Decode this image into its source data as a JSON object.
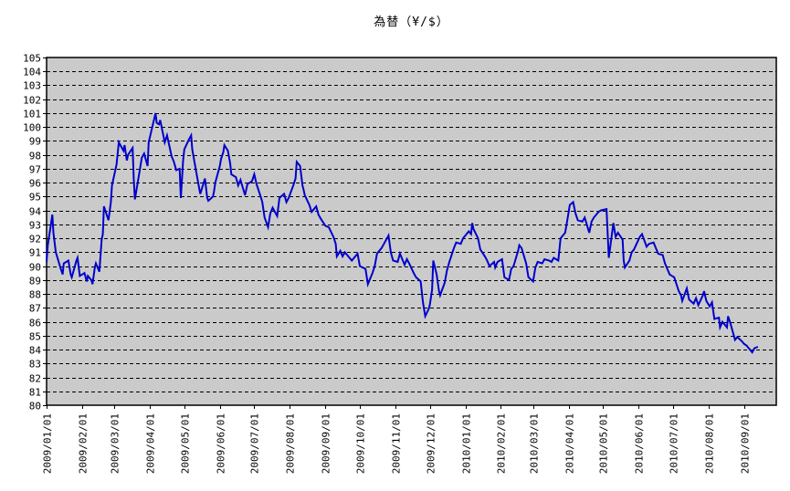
{
  "page": {
    "background": "#ffffff"
  },
  "chart_data": {
    "type": "line",
    "title": "為替（¥/$）",
    "xlabel": "",
    "ylabel": "",
    "legend": "none",
    "grid": "horizontal-dashed-black",
    "ylim": [
      80,
      105
    ],
    "y_tick_step": 1,
    "y_ticks": [
      80,
      81,
      82,
      83,
      84,
      85,
      86,
      87,
      88,
      89,
      90,
      91,
      92,
      93,
      94,
      95,
      96,
      97,
      98,
      99,
      100,
      101,
      102,
      103,
      104,
      105
    ],
    "x_ticks": [
      "2009/01/01",
      "2009/02/01",
      "2009/03/01",
      "2009/04/01",
      "2009/05/01",
      "2009/06/01",
      "2009/07/01",
      "2009/08/01",
      "2009/09/01",
      "2009/10/01",
      "2009/11/01",
      "2009/12/01",
      "2010/01/01",
      "2010/02/01",
      "2010/03/01",
      "2010/04/01",
      "2010/05/01",
      "2010/06/01",
      "2010/07/01",
      "2010/08/01",
      "2010/09/01"
    ],
    "x_axis_start": "2009-01-01",
    "x_axis_end": "2010-09-29",
    "colors": {
      "line": "#0000cc",
      "plot_background": "#c6c6c6",
      "plot_background_alt": "#cfcfcf",
      "grid": "#000000",
      "border": "#000000",
      "text": "#000000"
    },
    "series": [
      {
        "name": "為替（¥/$）",
        "points": [
          [
            "2009-01-01",
            90.3
          ],
          [
            "2009-01-02",
            91.5
          ],
          [
            "2009-01-05",
            93.1
          ],
          [
            "2009-01-06",
            93.7
          ],
          [
            "2009-01-07",
            92.4
          ],
          [
            "2009-01-09",
            91.0
          ],
          [
            "2009-01-13",
            89.9
          ],
          [
            "2009-01-15",
            89.4
          ],
          [
            "2009-01-16",
            90.2
          ],
          [
            "2009-01-20",
            90.4
          ],
          [
            "2009-01-22",
            89.4
          ],
          [
            "2009-01-23",
            89.2
          ],
          [
            "2009-01-27",
            90.4
          ],
          [
            "2009-01-28",
            90.6
          ],
          [
            "2009-01-30",
            89.3
          ],
          [
            "2009-02-03",
            89.5
          ],
          [
            "2009-02-05",
            88.9
          ],
          [
            "2009-02-06",
            89.3
          ],
          [
            "2009-02-09",
            89.0
          ],
          [
            "2009-02-10",
            88.7
          ],
          [
            "2009-02-12",
            89.9
          ],
          [
            "2009-02-13",
            90.2
          ],
          [
            "2009-02-16",
            89.6
          ],
          [
            "2009-02-18",
            91.9
          ],
          [
            "2009-02-19",
            92.3
          ],
          [
            "2009-02-20",
            94.3
          ],
          [
            "2009-02-24",
            93.3
          ],
          [
            "2009-02-26",
            94.6
          ],
          [
            "2009-02-27",
            95.8
          ],
          [
            "2009-03-03",
            97.3
          ],
          [
            "2009-03-05",
            98.9
          ],
          [
            "2009-03-09",
            98.3
          ],
          [
            "2009-03-10",
            98.7
          ],
          [
            "2009-03-12",
            97.6
          ],
          [
            "2009-03-13",
            98.0
          ],
          [
            "2009-03-17",
            98.5
          ],
          [
            "2009-03-18",
            96.2
          ],
          [
            "2009-03-19",
            94.8
          ],
          [
            "2009-03-23",
            96.8
          ],
          [
            "2009-03-25",
            97.8
          ],
          [
            "2009-03-27",
            98.1
          ],
          [
            "2009-03-30",
            97.2
          ],
          [
            "2009-03-31",
            98.9
          ],
          [
            "2009-04-02",
            99.6
          ],
          [
            "2009-04-06",
            101.0
          ],
          [
            "2009-04-07",
            100.3
          ],
          [
            "2009-04-09",
            100.2
          ],
          [
            "2009-04-10",
            100.5
          ],
          [
            "2009-04-14",
            98.9
          ],
          [
            "2009-04-16",
            99.4
          ],
          [
            "2009-04-20",
            97.9
          ],
          [
            "2009-04-22",
            97.5
          ],
          [
            "2009-04-24",
            96.9
          ],
          [
            "2009-04-27",
            97.0
          ],
          [
            "2009-04-28",
            94.9
          ],
          [
            "2009-04-30",
            97.6
          ],
          [
            "2009-05-01",
            98.4
          ],
          [
            "2009-05-05",
            99.1
          ],
          [
            "2009-05-07",
            99.4
          ],
          [
            "2009-05-08",
            98.4
          ],
          [
            "2009-05-12",
            96.5
          ],
          [
            "2009-05-14",
            95.6
          ],
          [
            "2009-05-15",
            95.2
          ],
          [
            "2009-05-19",
            96.3
          ],
          [
            "2009-05-21",
            94.9
          ],
          [
            "2009-05-22",
            94.7
          ],
          [
            "2009-05-26",
            95.0
          ],
          [
            "2009-05-27",
            95.4
          ],
          [
            "2009-05-28",
            96.0
          ],
          [
            "2009-06-01",
            97.2
          ],
          [
            "2009-06-02",
            97.7
          ],
          [
            "2009-06-04",
            98.2
          ],
          [
            "2009-06-05",
            98.7
          ],
          [
            "2009-06-08",
            98.3
          ],
          [
            "2009-06-10",
            97.4
          ],
          [
            "2009-06-11",
            96.6
          ],
          [
            "2009-06-15",
            96.4
          ],
          [
            "2009-06-17",
            95.8
          ],
          [
            "2009-06-19",
            96.2
          ],
          [
            "2009-06-23",
            95.1
          ],
          [
            "2009-06-25",
            95.9
          ],
          [
            "2009-06-29",
            96.1
          ],
          [
            "2009-07-01",
            96.6
          ],
          [
            "2009-07-03",
            95.9
          ],
          [
            "2009-07-07",
            94.9
          ],
          [
            "2009-07-08",
            94.6
          ],
          [
            "2009-07-10",
            93.5
          ],
          [
            "2009-07-13",
            92.8
          ],
          [
            "2009-07-15",
            93.8
          ],
          [
            "2009-07-17",
            94.2
          ],
          [
            "2009-07-21",
            93.6
          ],
          [
            "2009-07-23",
            94.9
          ],
          [
            "2009-07-27",
            95.2
          ],
          [
            "2009-07-29",
            94.6
          ],
          [
            "2009-07-31",
            94.9
          ],
          [
            "2009-08-04",
            95.8
          ],
          [
            "2009-08-06",
            96.3
          ],
          [
            "2009-08-07",
            97.5
          ],
          [
            "2009-08-10",
            97.2
          ],
          [
            "2009-08-12",
            95.8
          ],
          [
            "2009-08-13",
            95.5
          ],
          [
            "2009-08-14",
            95.1
          ],
          [
            "2009-08-18",
            94.4
          ],
          [
            "2009-08-20",
            93.9
          ],
          [
            "2009-08-24",
            94.3
          ],
          [
            "2009-08-26",
            93.7
          ],
          [
            "2009-08-28",
            93.4
          ],
          [
            "2009-09-01",
            92.9
          ],
          [
            "2009-09-04",
            92.8
          ],
          [
            "2009-09-08",
            92.1
          ],
          [
            "2009-09-10",
            91.6
          ],
          [
            "2009-09-11",
            90.7
          ],
          [
            "2009-09-14",
            91.1
          ],
          [
            "2009-09-16",
            90.7
          ],
          [
            "2009-09-18",
            91.0
          ],
          [
            "2009-09-24",
            90.4
          ],
          [
            "2009-09-29",
            90.9
          ],
          [
            "2009-10-01",
            90.0
          ],
          [
            "2009-10-06",
            89.8
          ],
          [
            "2009-10-08",
            88.7
          ],
          [
            "2009-10-12",
            89.5
          ],
          [
            "2009-10-14",
            90.0
          ],
          [
            "2009-10-16",
            90.9
          ],
          [
            "2009-10-20",
            91.3
          ],
          [
            "2009-10-26",
            92.2
          ],
          [
            "2009-10-28",
            91.0
          ],
          [
            "2009-10-30",
            90.4
          ],
          [
            "2009-11-03",
            90.3
          ],
          [
            "2009-11-05",
            90.9
          ],
          [
            "2009-11-09",
            90.1
          ],
          [
            "2009-11-11",
            90.5
          ],
          [
            "2009-11-13",
            90.2
          ],
          [
            "2009-11-17",
            89.5
          ],
          [
            "2009-11-19",
            89.2
          ],
          [
            "2009-11-23",
            88.9
          ],
          [
            "2009-11-25",
            87.4
          ],
          [
            "2009-11-27",
            86.4
          ],
          [
            "2009-11-30",
            86.9
          ],
          [
            "2009-12-01",
            87.2
          ],
          [
            "2009-12-03",
            88.3
          ],
          [
            "2009-12-04",
            90.4
          ],
          [
            "2009-12-07",
            89.4
          ],
          [
            "2009-12-09",
            88.2
          ],
          [
            "2009-12-10",
            87.9
          ],
          [
            "2009-12-14",
            88.8
          ],
          [
            "2009-12-16",
            89.7
          ],
          [
            "2009-12-18",
            90.3
          ],
          [
            "2009-12-22",
            91.3
          ],
          [
            "2009-12-24",
            91.7
          ],
          [
            "2009-12-28",
            91.6
          ],
          [
            "2009-12-30",
            92.0
          ],
          [
            "2010-01-04",
            92.5
          ],
          [
            "2010-01-06",
            92.3
          ],
          [
            "2010-01-07",
            93.1
          ],
          [
            "2010-01-08",
            92.7
          ],
          [
            "2010-01-12",
            92.0
          ],
          [
            "2010-01-14",
            91.2
          ],
          [
            "2010-01-18",
            90.7
          ],
          [
            "2010-01-20",
            90.4
          ],
          [
            "2010-01-22",
            90.0
          ],
          [
            "2010-01-26",
            90.3
          ],
          [
            "2010-01-27",
            89.9
          ],
          [
            "2010-01-29",
            90.3
          ],
          [
            "2010-02-02",
            90.5
          ],
          [
            "2010-02-04",
            89.2
          ],
          [
            "2010-02-08",
            89.0
          ],
          [
            "2010-02-10",
            89.8
          ],
          [
            "2010-02-12",
            90.0
          ],
          [
            "2010-02-16",
            91.1
          ],
          [
            "2010-02-17",
            91.5
          ],
          [
            "2010-02-19",
            91.3
          ],
          [
            "2010-02-23",
            90.2
          ],
          [
            "2010-02-25",
            89.2
          ],
          [
            "2010-03-01",
            88.9
          ],
          [
            "2010-03-03",
            89.9
          ],
          [
            "2010-03-05",
            90.3
          ],
          [
            "2010-03-09",
            90.2
          ],
          [
            "2010-03-11",
            90.5
          ],
          [
            "2010-03-15",
            90.4
          ],
          [
            "2010-03-17",
            90.3
          ],
          [
            "2010-03-19",
            90.6
          ],
          [
            "2010-03-23",
            90.4
          ],
          [
            "2010-03-25",
            92.0
          ],
          [
            "2010-03-29",
            92.4
          ],
          [
            "2010-03-31",
            93.4
          ],
          [
            "2010-04-02",
            94.4
          ],
          [
            "2010-04-05",
            94.6
          ],
          [
            "2010-04-07",
            93.8
          ],
          [
            "2010-04-09",
            93.3
          ],
          [
            "2010-04-13",
            93.2
          ],
          [
            "2010-04-15",
            93.5
          ],
          [
            "2010-04-19",
            92.4
          ],
          [
            "2010-04-21",
            93.2
          ],
          [
            "2010-04-23",
            93.5
          ],
          [
            "2010-04-27",
            93.9
          ],
          [
            "2010-04-29",
            94.0
          ],
          [
            "2010-05-04",
            94.1
          ],
          [
            "2010-05-06",
            90.6
          ],
          [
            "2010-05-10",
            93.1
          ],
          [
            "2010-05-12",
            92.1
          ],
          [
            "2010-05-14",
            92.4
          ],
          [
            "2010-05-18",
            91.9
          ],
          [
            "2010-05-19",
            90.4
          ],
          [
            "2010-05-20",
            89.9
          ],
          [
            "2010-05-24",
            90.4
          ],
          [
            "2010-05-26",
            91.0
          ],
          [
            "2010-05-28",
            91.2
          ],
          [
            "2010-06-02",
            92.1
          ],
          [
            "2010-06-04",
            92.3
          ],
          [
            "2010-06-08",
            91.4
          ],
          [
            "2010-06-10",
            91.6
          ],
          [
            "2010-06-14",
            91.7
          ],
          [
            "2010-06-16",
            91.3
          ],
          [
            "2010-06-18",
            90.9
          ],
          [
            "2010-06-22",
            90.8
          ],
          [
            "2010-06-24",
            90.2
          ],
          [
            "2010-06-28",
            89.4
          ],
          [
            "2010-06-30",
            89.3
          ],
          [
            "2010-07-02",
            89.2
          ],
          [
            "2010-07-06",
            88.2
          ],
          [
            "2010-07-08",
            87.9
          ],
          [
            "2010-07-09",
            87.5
          ],
          [
            "2010-07-13",
            88.4
          ],
          [
            "2010-07-15",
            87.6
          ],
          [
            "2010-07-19",
            87.3
          ],
          [
            "2010-07-21",
            87.7
          ],
          [
            "2010-07-23",
            87.2
          ],
          [
            "2010-07-27",
            87.9
          ],
          [
            "2010-07-28",
            88.2
          ],
          [
            "2010-07-30",
            87.5
          ],
          [
            "2010-08-02",
            87.1
          ],
          [
            "2010-08-04",
            87.4
          ],
          [
            "2010-08-06",
            86.2
          ],
          [
            "2010-08-10",
            86.3
          ],
          [
            "2010-08-11",
            85.6
          ],
          [
            "2010-08-13",
            86.0
          ],
          [
            "2010-08-17",
            85.6
          ],
          [
            "2010-08-18",
            86.4
          ],
          [
            "2010-08-20",
            85.9
          ],
          [
            "2010-08-24",
            84.7
          ],
          [
            "2010-08-26",
            84.9
          ],
          [
            "2010-08-30",
            84.6
          ],
          [
            "2010-09-01",
            84.4
          ],
          [
            "2010-09-03",
            84.3
          ],
          [
            "2010-09-07",
            83.9
          ],
          [
            "2010-09-08",
            83.8
          ],
          [
            "2010-09-10",
            84.1
          ],
          [
            "2010-09-13",
            84.2
          ]
        ]
      }
    ]
  }
}
